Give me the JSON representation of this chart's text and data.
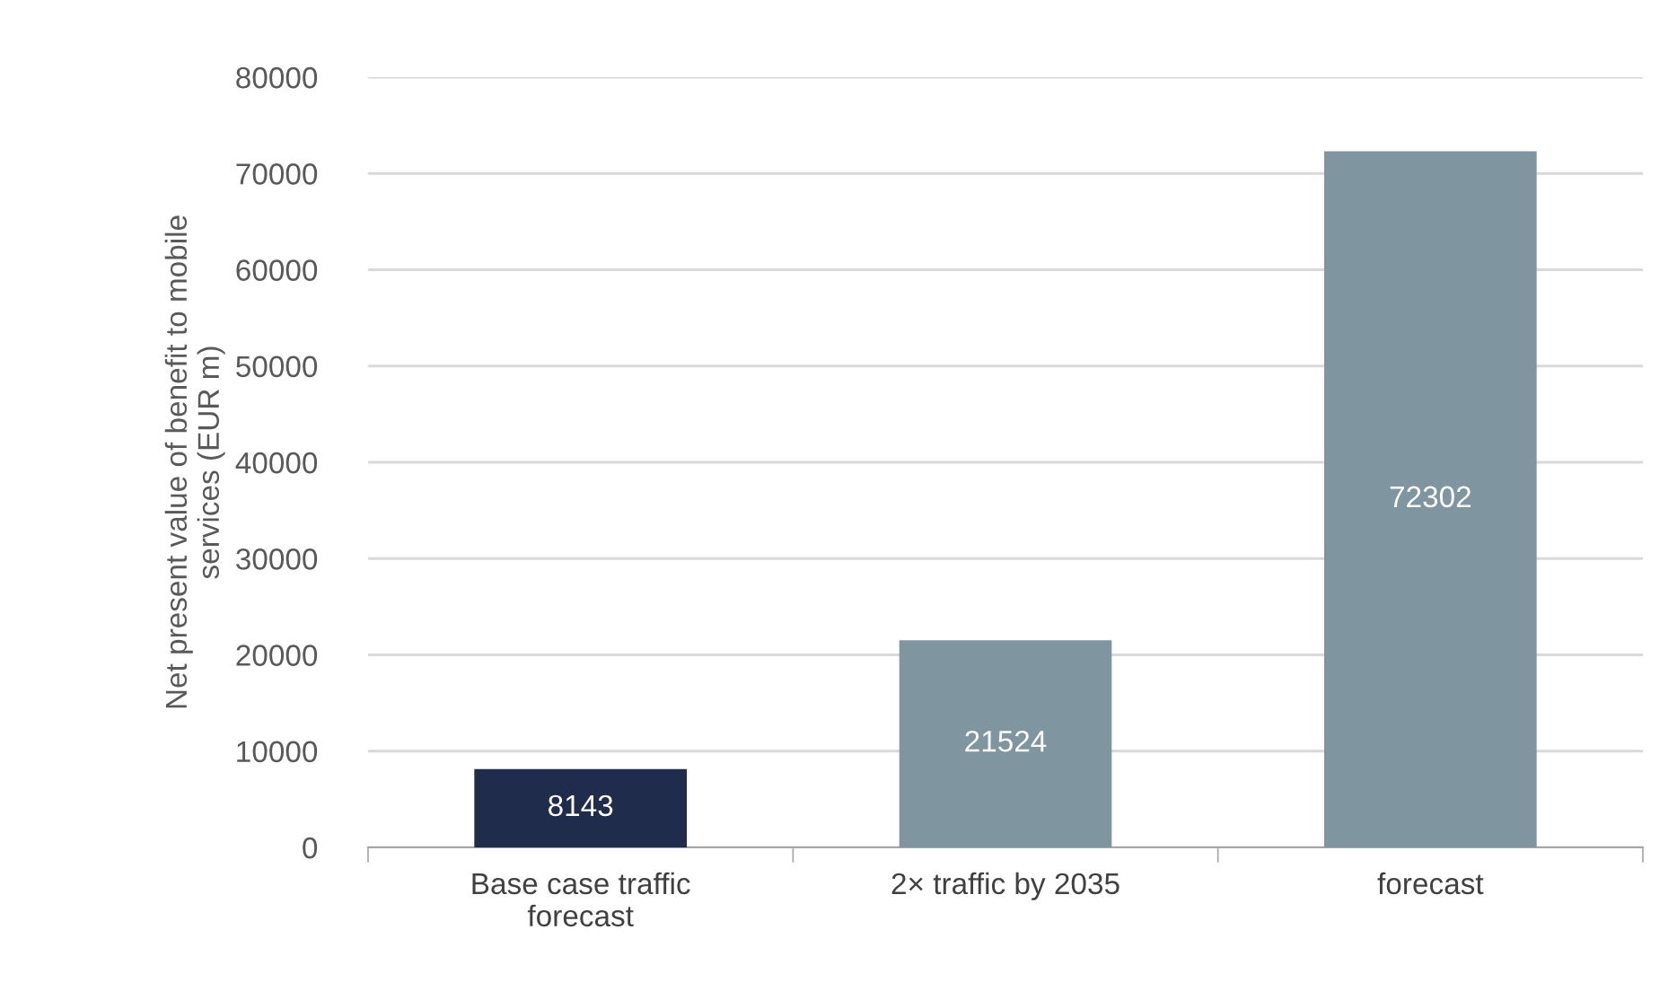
{
  "chart_data": {
    "type": "bar",
    "ylabel": "Net present value of benefit to mobile\nservices (EUR m)",
    "categories": [
      "Base case traffic\nforecast",
      "2× traffic by 2035",
      "forecast"
    ],
    "values": [
      8143,
      21524,
      72302
    ],
    "colors": [
      "#1f2c4c",
      "#7f96a0",
      "#7f96a0"
    ],
    "ylim": [
      0,
      80000
    ],
    "yticks": [
      0,
      10000,
      20000,
      30000,
      40000,
      50000,
      60000,
      70000,
      80000
    ],
    "grid": "y",
    "data_labels": true,
    "legend": false
  }
}
